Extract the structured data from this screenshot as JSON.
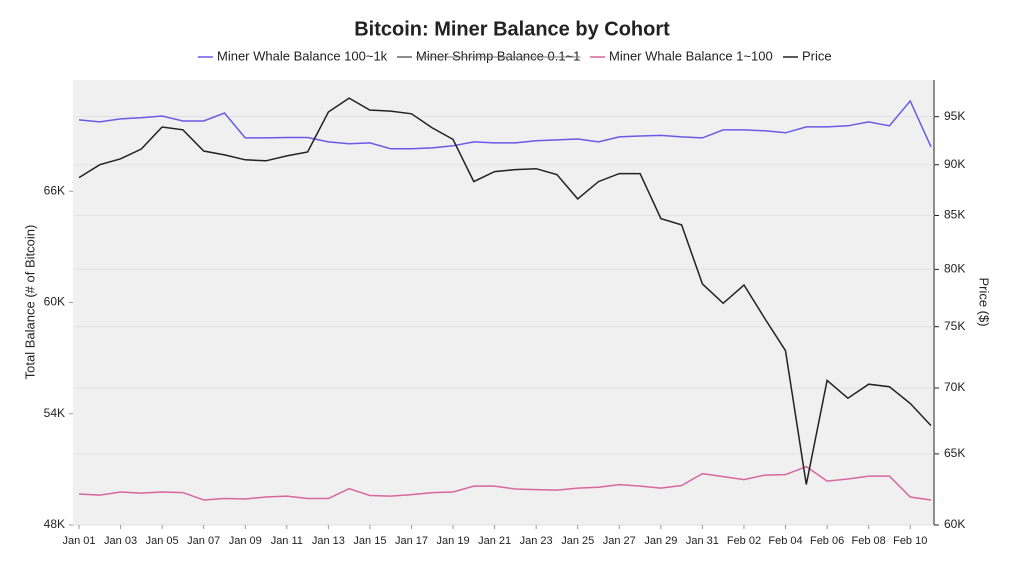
{
  "chart_data": {
    "type": "line",
    "title": "Bitcoin: Miner Balance by Cohort",
    "y_label": "Total Balance (# of Bitcoin)",
    "y2_label": "Price ($)",
    "categories": [
      "Jan 01",
      null,
      "Jan 03",
      null,
      "Jan 05",
      null,
      "Jan 07",
      null,
      "Jan 09",
      null,
      "Jan 11",
      null,
      "Jan 13",
      null,
      "Jan 15",
      null,
      "Jan 17",
      null,
      "Jan 19",
      null,
      "Jan 21",
      null,
      "Jan 23",
      null,
      "Jan 25",
      null,
      "Jan 27",
      null,
      "Jan 29",
      null,
      "Jan 31",
      null,
      "Feb 02",
      null,
      "Feb 04",
      null,
      "Feb 06",
      null,
      "Feb 08",
      null,
      "Feb 10",
      null
    ],
    "series": [
      {
        "name": "Miner Whale Balance 100~1k",
        "color": "#6a5be6",
        "values": [
          69850,
          69740,
          69900,
          69960,
          70060,
          69790,
          69790,
          70220,
          68880,
          68880,
          68900,
          68900,
          68660,
          68560,
          68610,
          68290,
          68290,
          68340,
          68450,
          68660,
          68610,
          68610,
          68720,
          68770,
          68820,
          68660,
          68930,
          68980,
          69010,
          68930,
          68880,
          69310,
          69310,
          69260,
          69150,
          69470,
          69470,
          69530,
          69740,
          69530,
          70870,
          68400
        ]
      },
      {
        "name": "Miner Shrimp Balance 0.1~1",
        "color": "#666666",
        "hidden": true,
        "values": [
          null,
          null,
          null,
          null,
          null,
          null,
          null,
          null,
          null,
          null,
          null,
          null,
          null,
          null,
          null,
          null,
          null,
          null,
          null,
          null,
          null,
          null,
          null,
          null,
          null,
          null,
          null,
          null,
          null,
          null,
          null,
          null,
          null,
          null,
          null,
          null,
          null,
          null,
          null,
          null,
          null,
          null
        ]
      },
      {
        "name": "Miner Whale Balance 1~100",
        "color": "#d9679d",
        "values": [
          49670,
          49610,
          49780,
          49720,
          49780,
          49750,
          49350,
          49430,
          49400,
          49510,
          49560,
          49430,
          49430,
          49960,
          49590,
          49560,
          49640,
          49750,
          49780,
          50100,
          50100,
          49940,
          49910,
          49880,
          49990,
          50040,
          50180,
          50100,
          49990,
          50130,
          50770,
          50610,
          50450,
          50690,
          50720,
          51150,
          50370,
          50480,
          50640,
          50640,
          49510,
          49350
        ]
      },
      {
        "name": "Price",
        "color": "#222222",
        "axis": "y2",
        "values": [
          88700,
          90000,
          90600,
          91600,
          93900,
          93600,
          91400,
          91000,
          90500,
          90400,
          90900,
          91300,
          95500,
          97000,
          95700,
          95600,
          95300,
          93800,
          92600,
          88300,
          89300,
          89500,
          89600,
          89000,
          86600,
          88300,
          89100,
          89100,
          84700,
          84100,
          78700,
          77000,
          78600,
          75700,
          73000,
          62800,
          70600,
          69200,
          70300,
          70100,
          68800,
          67100
        ]
      }
    ],
    "ylim": [
      48000,
      72000
    ],
    "yticks": [
      {
        "value": 48000,
        "label": "48K"
      },
      {
        "value": 54000,
        "label": "54K"
      },
      {
        "value": 60000,
        "label": "60K"
      },
      {
        "value": 66000,
        "label": "66K"
      }
    ],
    "y2lim": [
      60000,
      99000
    ],
    "y2_log": true,
    "y2ticks": [
      {
        "value": 60000,
        "label": "60K"
      },
      {
        "value": 65000,
        "label": "65K"
      },
      {
        "value": 70000,
        "label": "70K"
      },
      {
        "value": 75000,
        "label": "75K"
      },
      {
        "value": 80000,
        "label": "80K"
      },
      {
        "value": 85000,
        "label": "85K"
      },
      {
        "value": 90000,
        "label": "90K"
      },
      {
        "value": 95000,
        "label": "95K"
      }
    ],
    "grid": true,
    "legend": "top"
  }
}
